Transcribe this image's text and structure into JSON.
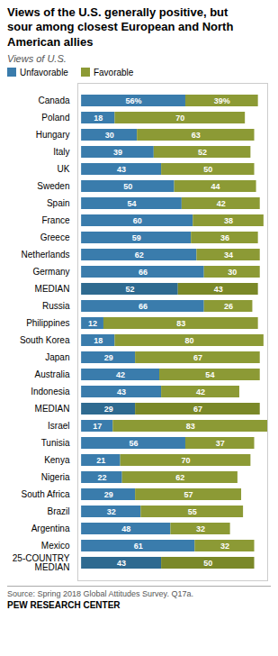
{
  "chart_data": {
    "type": "bar",
    "orientation": "horizontal",
    "stacked": true,
    "data_labels": true,
    "grid": false,
    "tick_labels": "y",
    "title": "Views of the U.S. generally positive, but\nsour among closest European and North\nAmerican allies",
    "subtitle": "Views of U.S.",
    "annotations": [
      "Source: Spring 2018 Global Attitudes Survey. Q17a.",
      "PEW RESEARCH CENTER"
    ],
    "xlim": [
      -2,
      100
    ],
    "xticks": [],
    "categories": [
      "Canada",
      "Poland",
      "Hungary",
      "Italy",
      "UK",
      "Sweden",
      "Spain",
      "France",
      "Greece",
      "Netherlands",
      "Germany",
      "MEDIAN",
      "Russia",
      "Philippines",
      "South Korea",
      "Japan",
      "Australia",
      "Indonesia",
      "MEDIAN",
      "Israel",
      "Tunisia",
      "Kenya",
      "Nigeria",
      "South Africa",
      "Brazil",
      "Argentina",
      "Mexico",
      "25-COUNTRY\nMEDIAN"
    ],
    "series": [
      {
        "name": "Unfavorable",
        "color": "#3a7cac",
        "values": [
          56,
          18,
          30,
          39,
          43,
          50,
          54,
          60,
          59,
          62,
          66,
          52,
          66,
          12,
          18,
          29,
          42,
          43,
          29,
          17,
          56,
          21,
          22,
          29,
          32,
          48,
          61,
          43
        ],
        "value_labels": [
          "56%",
          "18",
          "30",
          "39",
          "43",
          "50",
          "54",
          "60",
          "59",
          "62",
          "66",
          "52",
          "66",
          "12",
          "18",
          "29",
          "42",
          "43",
          "29",
          "17",
          "56",
          "21",
          "22",
          "29",
          "32",
          "48",
          "61",
          "43"
        ],
        "colors": [
          "#3a7cac",
          "#3a7cac",
          "#3a7cac",
          "#3a7cac",
          "#3a7cac",
          "#3a7cac",
          "#3a7cac",
          "#3a7cac",
          "#3a7cac",
          "#3a7cac",
          "#3a7cac",
          "#2e6a90",
          "#3a7cac",
          "#3a7cac",
          "#3a7cac",
          "#3a7cac",
          "#3a7cac",
          "#3a7cac",
          "#2e6a90",
          "#3a7cac",
          "#3a7cac",
          "#3a7cac",
          "#3a7cac",
          "#3a7cac",
          "#3a7cac",
          "#3a7cac",
          "#3a7cac",
          "#2e6a90"
        ]
      },
      {
        "name": "Favorable",
        "color": "#8c9a35",
        "values": [
          39,
          70,
          63,
          52,
          50,
          44,
          42,
          38,
          36,
          34,
          30,
          43,
          26,
          83,
          80,
          67,
          54,
          42,
          67,
          83,
          37,
          70,
          62,
          57,
          55,
          32,
          32,
          50
        ],
        "value_labels": [
          "39%",
          "70",
          "63",
          "52",
          "50",
          "44",
          "42",
          "38",
          "36",
          "34",
          "30",
          "43",
          "26",
          "83",
          "80",
          "67",
          "54",
          "42",
          "67",
          "83",
          "37",
          "70",
          "62",
          "57",
          "55",
          "32",
          "32",
          "50"
        ],
        "colors": [
          "#8c9a35",
          "#8c9a35",
          "#8c9a35",
          "#8c9a35",
          "#8c9a35",
          "#8c9a35",
          "#8c9a35",
          "#8c9a35",
          "#8c9a35",
          "#8c9a35",
          "#8c9a35",
          "#7a8828",
          "#8c9a35",
          "#8c9a35",
          "#8c9a35",
          "#8c9a35",
          "#8c9a35",
          "#8c9a35",
          "#7a8828",
          "#8c9a35",
          "#8c9a35",
          "#8c9a35",
          "#8c9a35",
          "#8c9a35",
          "#8c9a35",
          "#8c9a35",
          "#8c9a35",
          "#7a8828"
        ]
      }
    ]
  }
}
